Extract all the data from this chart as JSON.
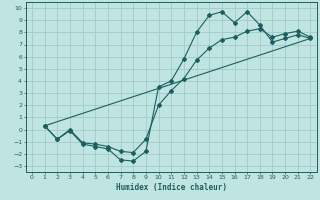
{
  "xlabel": "Humidex (Indice chaleur)",
  "bg_color": "#c0e4e0",
  "grid_color": "#a0cccc",
  "line_color": "#1a6060",
  "xlim": [
    -0.5,
    22.5
  ],
  "ylim": [
    -3.5,
    10.5
  ],
  "xticks": [
    0,
    1,
    2,
    3,
    4,
    5,
    6,
    7,
    8,
    9,
    10,
    11,
    12,
    13,
    14,
    15,
    16,
    17,
    18,
    19,
    20,
    21,
    22
  ],
  "yticks": [
    -3,
    -2,
    -1,
    0,
    1,
    2,
    3,
    4,
    5,
    6,
    7,
    8,
    9,
    10
  ],
  "line1_x": [
    1,
    2,
    3,
    4,
    5,
    6,
    7,
    8,
    9,
    10,
    11,
    12,
    13,
    14,
    15,
    16,
    17,
    18,
    19,
    20,
    21,
    22
  ],
  "line1_y": [
    0.3,
    -0.8,
    -0.1,
    -1.2,
    -1.4,
    -1.6,
    -2.5,
    -2.6,
    -1.8,
    3.5,
    4.0,
    5.8,
    8.0,
    9.4,
    9.7,
    8.8,
    9.7,
    8.6,
    7.2,
    7.5,
    7.8,
    7.5
  ],
  "line2_x": [
    1,
    2,
    3,
    4,
    5,
    6,
    7,
    8,
    9,
    10,
    11,
    12,
    13,
    14,
    15,
    16,
    17,
    18,
    19,
    20,
    21,
    22
  ],
  "line2_y": [
    0.3,
    -0.8,
    0.0,
    -1.1,
    -1.2,
    -1.4,
    -1.8,
    -1.9,
    -0.8,
    2.0,
    3.2,
    4.2,
    5.7,
    6.7,
    7.4,
    7.6,
    8.1,
    8.3,
    7.6,
    7.9,
    8.1,
    7.6
  ],
  "line3_x": [
    1,
    22
  ],
  "line3_y": [
    0.3,
    7.5
  ]
}
